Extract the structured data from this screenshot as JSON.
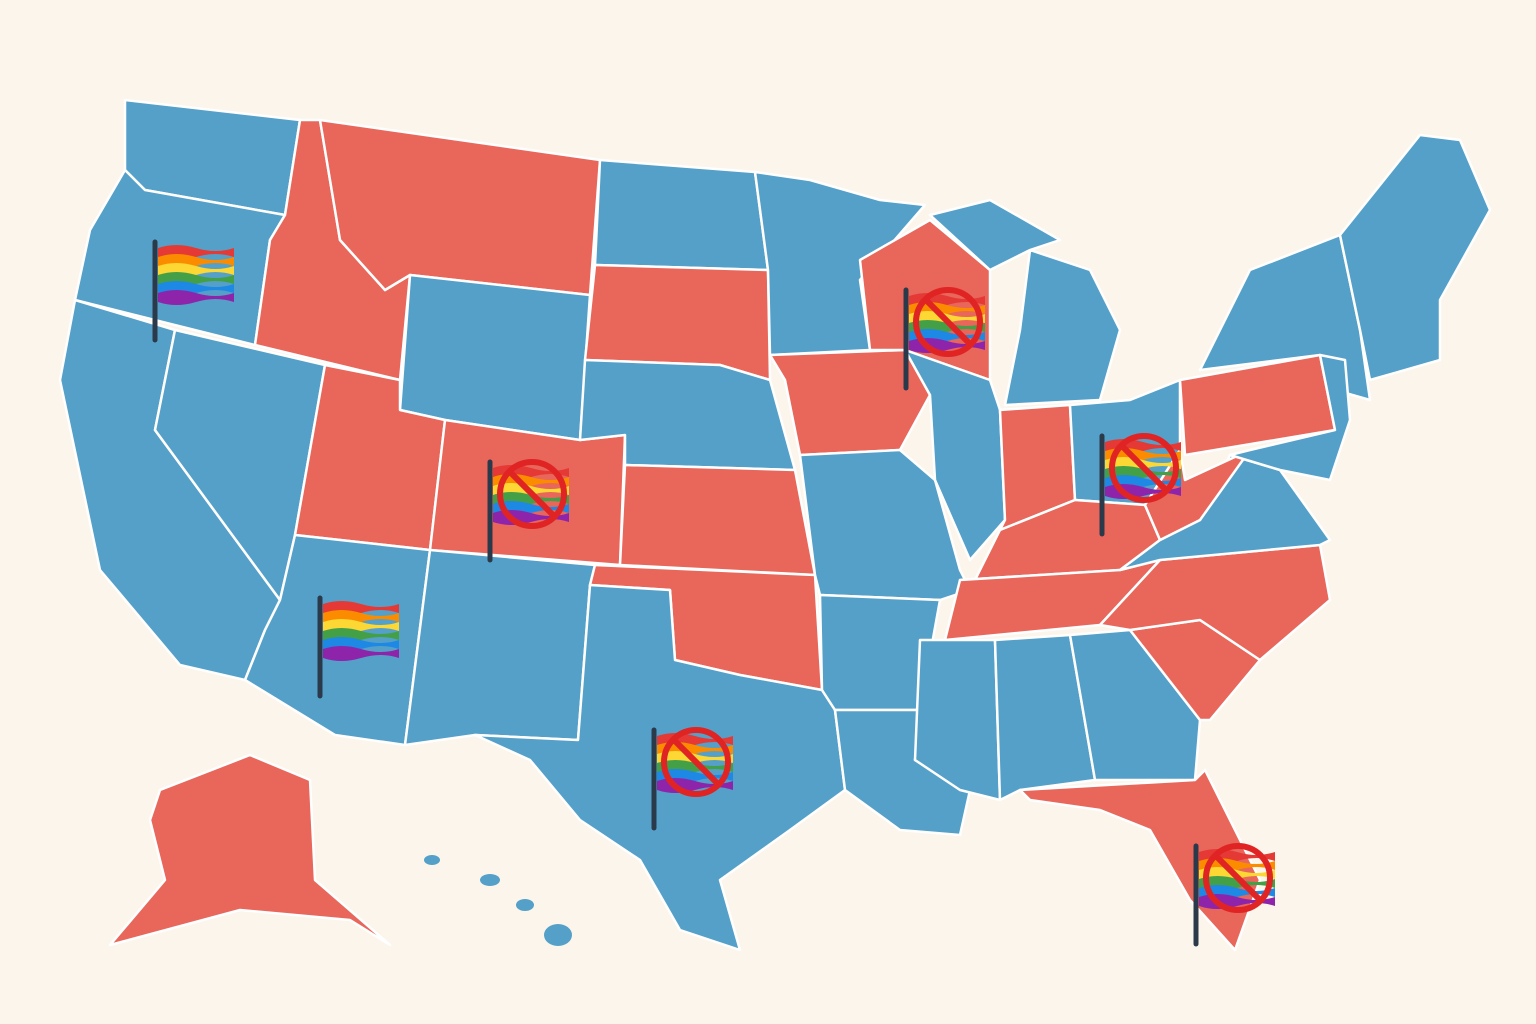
{
  "map": {
    "background": "#fbf5ec",
    "blue": "#55a0c8",
    "red": "#e8665a",
    "border": "#ffffff"
  }
}
